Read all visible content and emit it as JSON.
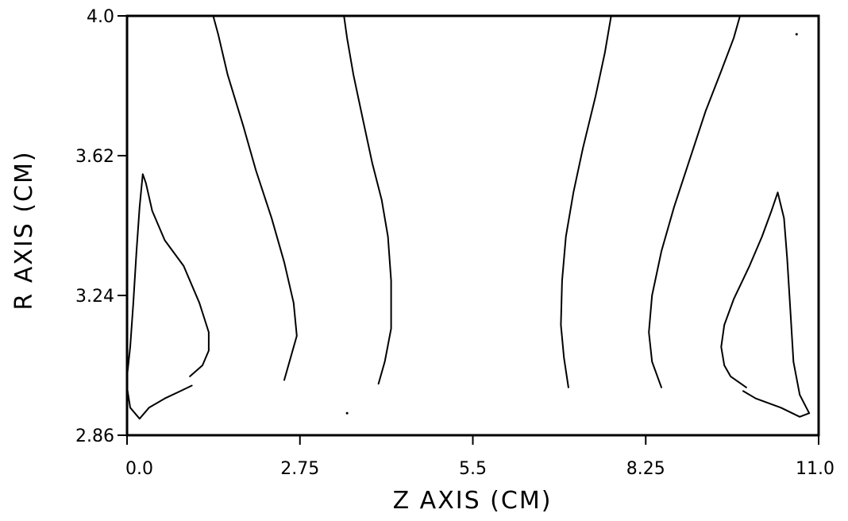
{
  "chart_data": {
    "type": "line",
    "subtype": "contour",
    "title": "",
    "xlabel": "Z AXIS (CM)",
    "ylabel": "R AXIS (CM)",
    "xlim": [
      0,
      11
    ],
    "ylim": [
      2.86,
      4.0
    ],
    "x_ticks": [
      0,
      2.75,
      5.5,
      8.25,
      11
    ],
    "x_tick_labels": [
      "0.0",
      "2.75",
      "5.5",
      "8.25",
      "11.0"
    ],
    "y_ticks": [
      2.86,
      3.24,
      3.62,
      4.0
    ],
    "y_tick_labels": [
      "2.86",
      "3.24",
      "3.62",
      "4.0"
    ],
    "grid": false,
    "legend": "none",
    "line_color": "#000000",
    "series": [
      {
        "points": [
          [
            0.0,
            3.02
          ],
          [
            0.05,
            3.1
          ],
          [
            0.1,
            3.22
          ],
          [
            0.15,
            3.36
          ],
          [
            0.2,
            3.48
          ],
          [
            0.25,
            3.57
          ],
          [
            0.3,
            3.545
          ],
          [
            0.4,
            3.47
          ],
          [
            0.6,
            3.39
          ],
          [
            0.9,
            3.32
          ],
          [
            1.15,
            3.22
          ],
          [
            1.3,
            3.14
          ],
          [
            1.3,
            3.09
          ],
          [
            1.2,
            3.05
          ],
          [
            1.0,
            3.02
          ]
        ]
      },
      {
        "points": [
          [
            1.03,
            2.995
          ],
          [
            0.85,
            2.98
          ],
          [
            0.6,
            2.96
          ],
          [
            0.35,
            2.935
          ],
          [
            0.2,
            2.905
          ],
          [
            0.05,
            2.935
          ],
          [
            0.0,
            2.99
          ]
        ]
      },
      {
        "points": [
          [
            1.37,
            4.0
          ],
          [
            1.45,
            3.95
          ],
          [
            1.6,
            3.84
          ],
          [
            1.85,
            3.7
          ],
          [
            2.05,
            3.58
          ],
          [
            2.3,
            3.45
          ],
          [
            2.5,
            3.33
          ],
          [
            2.65,
            3.22
          ],
          [
            2.7,
            3.13
          ],
          [
            2.6,
            3.07
          ],
          [
            2.5,
            3.01
          ]
        ]
      },
      {
        "points": [
          [
            3.45,
            4.0
          ],
          [
            3.5,
            3.94
          ],
          [
            3.6,
            3.84
          ],
          [
            3.75,
            3.72
          ],
          [
            3.9,
            3.6
          ],
          [
            4.05,
            3.5
          ],
          [
            4.15,
            3.4
          ],
          [
            4.2,
            3.28
          ],
          [
            4.2,
            3.15
          ],
          [
            4.1,
            3.06
          ],
          [
            4.0,
            3.0
          ]
        ]
      },
      {
        "points": [
          [
            7.7,
            4.0
          ],
          [
            7.6,
            3.9
          ],
          [
            7.45,
            3.78
          ],
          [
            7.25,
            3.64
          ],
          [
            7.1,
            3.52
          ],
          [
            6.98,
            3.4
          ],
          [
            6.92,
            3.28
          ],
          [
            6.9,
            3.16
          ],
          [
            6.95,
            3.07
          ],
          [
            7.02,
            2.99
          ]
        ]
      },
      {
        "points": [
          [
            9.75,
            4.0
          ],
          [
            9.65,
            3.94
          ],
          [
            9.45,
            3.85
          ],
          [
            9.2,
            3.74
          ],
          [
            8.95,
            3.61
          ],
          [
            8.7,
            3.48
          ],
          [
            8.5,
            3.36
          ],
          [
            8.35,
            3.24
          ],
          [
            8.3,
            3.14
          ],
          [
            8.35,
            3.06
          ],
          [
            8.5,
            2.99
          ]
        ]
      },
      {
        "points": [
          [
            10.85,
            2.92
          ],
          [
            10.7,
            2.91
          ],
          [
            10.4,
            2.935
          ],
          [
            10.0,
            2.96
          ],
          [
            9.8,
            2.98
          ]
        ]
      },
      {
        "points": [
          [
            9.85,
            2.99
          ],
          [
            9.6,
            3.02
          ],
          [
            9.5,
            3.05
          ],
          [
            9.45,
            3.1
          ],
          [
            9.5,
            3.16
          ],
          [
            9.65,
            3.23
          ],
          [
            9.9,
            3.32
          ],
          [
            10.1,
            3.4
          ],
          [
            10.25,
            3.47
          ],
          [
            10.35,
            3.52
          ],
          [
            10.45,
            3.45
          ],
          [
            10.5,
            3.34
          ],
          [
            10.55,
            3.2
          ],
          [
            10.6,
            3.06
          ],
          [
            10.7,
            2.97
          ],
          [
            10.85,
            2.92
          ]
        ]
      }
    ],
    "stray_points": [
      [
        3.5,
        2.92
      ],
      [
        10.65,
        3.95
      ]
    ]
  }
}
